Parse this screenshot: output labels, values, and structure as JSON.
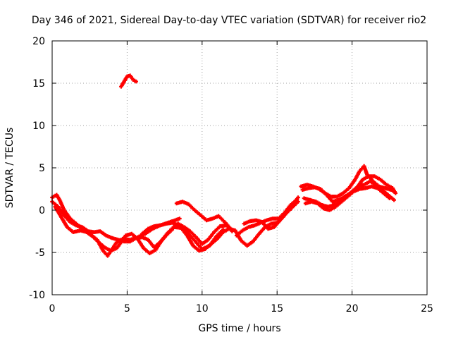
{
  "chart_data": {
    "type": "scatter",
    "title": "Day 346 of 2021, Sidereal Day-to-day VTEC variation (SDTVAR) for receiver rio2",
    "xlabel": "GPS time / hours",
    "ylabel": "SDTVAR / TECUs",
    "xlim": [
      0,
      25
    ],
    "ylim": [
      -10,
      20
    ],
    "xticks": [
      0,
      5,
      10,
      15,
      20,
      25
    ],
    "yticks": [
      -10,
      -5,
      0,
      5,
      10,
      15,
      20
    ],
    "xtick_labels": [
      "0",
      "5",
      "10",
      "15",
      "20",
      "25"
    ],
    "ytick_labels": [
      "-10",
      "-5",
      "0",
      "5",
      "10",
      "15",
      "20"
    ],
    "grid": true,
    "legend": "none",
    "marker": "plus",
    "color": "#ff0000",
    "series": [
      {
        "name": "track-1",
        "points": [
          [
            0.0,
            1.5
          ],
          [
            0.3,
            1.8
          ],
          [
            0.5,
            1.2
          ],
          [
            0.8,
            0.0
          ],
          [
            1.2,
            -1.0
          ],
          [
            1.6,
            -1.6
          ],
          [
            2.0,
            -2.2
          ],
          [
            2.5,
            -2.8
          ],
          [
            3.0,
            -3.5
          ],
          [
            3.4,
            -4.8
          ],
          [
            3.7,
            -5.4
          ],
          [
            4.0,
            -4.6
          ],
          [
            4.3,
            -3.8
          ],
          [
            4.7,
            -3.4
          ],
          [
            5.2,
            -3.5
          ],
          [
            5.7,
            -3.2
          ],
          [
            6.2,
            -2.8
          ],
          [
            6.7,
            -2.2
          ],
          [
            7.2,
            -1.8
          ],
          [
            7.7,
            -1.5
          ],
          [
            8.2,
            -1.2
          ],
          [
            8.5,
            -1.0
          ]
        ]
      },
      {
        "name": "track-2",
        "points": [
          [
            0.0,
            1.0
          ],
          [
            0.4,
            0.4
          ],
          [
            0.8,
            -0.6
          ],
          [
            1.2,
            -1.4
          ],
          [
            1.6,
            -1.8
          ],
          [
            2.0,
            -2.0
          ],
          [
            2.4,
            -2.5
          ],
          [
            2.8,
            -2.6
          ],
          [
            3.2,
            -2.5
          ],
          [
            3.6,
            -3.0
          ],
          [
            4.0,
            -3.3
          ],
          [
            4.4,
            -3.5
          ],
          [
            4.8,
            -3.7
          ],
          [
            5.2,
            -3.7
          ],
          [
            5.6,
            -3.3
          ],
          [
            6.0,
            -3.2
          ],
          [
            6.4,
            -3.5
          ],
          [
            6.8,
            -4.4
          ],
          [
            7.2,
            -3.8
          ],
          [
            7.6,
            -3.0
          ],
          [
            8.0,
            -2.3
          ],
          [
            8.4,
            -1.6
          ],
          [
            8.8,
            -2.0
          ],
          [
            9.2,
            -2.5
          ],
          [
            9.6,
            -3.2
          ],
          [
            10.0,
            -4.0
          ],
          [
            10.4,
            -3.5
          ],
          [
            10.8,
            -2.6
          ],
          [
            11.2,
            -1.9
          ],
          [
            11.6,
            -1.8
          ],
          [
            12.0,
            -2.5
          ]
        ]
      },
      {
        "name": "track-3",
        "points": [
          [
            0.2,
            0.4
          ],
          [
            0.6,
            -0.8
          ],
          [
            1.0,
            -2.0
          ],
          [
            1.4,
            -2.6
          ],
          [
            1.9,
            -2.4
          ],
          [
            2.3,
            -2.6
          ],
          [
            2.7,
            -3.1
          ],
          [
            3.1,
            -3.8
          ],
          [
            3.5,
            -4.4
          ],
          [
            3.9,
            -4.8
          ],
          [
            4.3,
            -4.5
          ],
          [
            4.6,
            -3.8
          ],
          [
            4.9,
            -3.0
          ],
          [
            5.3,
            -2.8
          ],
          [
            5.7,
            -3.4
          ],
          [
            6.1,
            -4.5
          ],
          [
            6.5,
            -5.1
          ],
          [
            6.9,
            -4.7
          ],
          [
            7.3,
            -3.6
          ],
          [
            7.7,
            -2.7
          ],
          [
            8.1,
            -2.0
          ],
          [
            8.6,
            -2.1
          ],
          [
            9.0,
            -3.0
          ],
          [
            9.4,
            -4.2
          ],
          [
            9.8,
            -4.8
          ],
          [
            10.2,
            -4.6
          ],
          [
            10.6,
            -4.0
          ],
          [
            11.0,
            -3.4
          ],
          [
            11.4,
            -2.6
          ],
          [
            11.8,
            -2.2
          ],
          [
            12.2,
            -2.4
          ]
        ]
      },
      {
        "name": "track-4",
        "points": [
          [
            6.0,
            -2.8
          ],
          [
            6.4,
            -2.2
          ],
          [
            6.8,
            -1.9
          ],
          [
            7.2,
            -1.8
          ],
          [
            7.6,
            -1.6
          ],
          [
            8.0,
            -1.5
          ],
          [
            8.5,
            -1.8
          ],
          [
            9.0,
            -2.6
          ],
          [
            9.5,
            -3.6
          ],
          [
            10.0,
            -4.6
          ],
          [
            10.5,
            -4.2
          ],
          [
            11.0,
            -3.0
          ],
          [
            11.4,
            -2.3
          ]
        ]
      },
      {
        "name": "track-5",
        "points": [
          [
            8.3,
            0.8
          ],
          [
            8.7,
            1.0
          ],
          [
            9.1,
            0.7
          ],
          [
            9.5,
            0.0
          ],
          [
            9.9,
            -0.6
          ],
          [
            10.3,
            -1.2
          ],
          [
            10.7,
            -1.0
          ],
          [
            11.1,
            -0.7
          ],
          [
            11.5,
            -1.4
          ],
          [
            11.9,
            -2.2
          ]
        ]
      },
      {
        "name": "track-6",
        "points": [
          [
            12.2,
            -2.4
          ],
          [
            12.6,
            -3.6
          ],
          [
            13.0,
            -4.2
          ],
          [
            13.4,
            -3.7
          ],
          [
            13.8,
            -2.8
          ],
          [
            14.2,
            -2.0
          ],
          [
            14.6,
            -1.6
          ],
          [
            15.0,
            -1.5
          ],
          [
            15.4,
            -0.8
          ],
          [
            15.8,
            0.2
          ],
          [
            16.2,
            1.0
          ],
          [
            16.4,
            1.5
          ]
        ]
      },
      {
        "name": "track-7",
        "points": [
          [
            12.3,
            -3.0
          ],
          [
            12.7,
            -2.4
          ],
          [
            13.1,
            -2.0
          ],
          [
            13.5,
            -1.8
          ],
          [
            13.9,
            -1.5
          ],
          [
            14.3,
            -1.2
          ],
          [
            14.7,
            -1.0
          ],
          [
            15.1,
            -1.0
          ],
          [
            15.5,
            -0.3
          ],
          [
            15.9,
            0.6
          ],
          [
            16.3,
            1.2
          ]
        ]
      },
      {
        "name": "track-8",
        "points": [
          [
            12.8,
            -1.6
          ],
          [
            13.2,
            -1.3
          ],
          [
            13.6,
            -1.2
          ],
          [
            14.0,
            -1.4
          ],
          [
            14.4,
            -2.2
          ],
          [
            14.8,
            -2.0
          ],
          [
            15.2,
            -1.2
          ],
          [
            15.6,
            -0.4
          ],
          [
            16.0,
            0.3
          ],
          [
            16.4,
            1.0
          ]
        ]
      },
      {
        "name": "track-9",
        "points": [
          [
            16.6,
            2.8
          ],
          [
            17.0,
            3.0
          ],
          [
            17.4,
            2.8
          ],
          [
            17.8,
            2.5
          ],
          [
            18.2,
            2.0
          ],
          [
            18.6,
            1.6
          ],
          [
            19.0,
            1.6
          ],
          [
            19.4,
            2.0
          ],
          [
            19.8,
            2.6
          ],
          [
            20.2,
            3.6
          ],
          [
            20.5,
            4.6
          ],
          [
            20.8,
            5.2
          ],
          [
            21.0,
            4.2
          ],
          [
            21.4,
            3.4
          ],
          [
            21.8,
            2.8
          ],
          [
            22.2,
            2.6
          ],
          [
            22.6,
            2.4
          ],
          [
            22.8,
            2.2
          ]
        ]
      },
      {
        "name": "track-10",
        "points": [
          [
            16.7,
            2.4
          ],
          [
            17.1,
            2.6
          ],
          [
            17.5,
            2.7
          ],
          [
            17.9,
            2.5
          ],
          [
            18.3,
            1.8
          ],
          [
            18.7,
            1.0
          ],
          [
            19.1,
            1.2
          ],
          [
            19.5,
            1.6
          ],
          [
            19.9,
            2.0
          ],
          [
            20.3,
            2.6
          ],
          [
            20.7,
            3.6
          ],
          [
            21.1,
            4.0
          ],
          [
            21.5,
            4.0
          ],
          [
            21.9,
            3.6
          ],
          [
            22.3,
            3.0
          ],
          [
            22.7,
            2.6
          ],
          [
            22.9,
            2.0
          ]
        ]
      },
      {
        "name": "track-11",
        "points": [
          [
            16.8,
            1.4
          ],
          [
            17.2,
            1.2
          ],
          [
            17.6,
            1.0
          ],
          [
            18.0,
            0.6
          ],
          [
            18.4,
            0.4
          ],
          [
            18.8,
            0.6
          ],
          [
            19.2,
            1.0
          ],
          [
            19.6,
            1.6
          ],
          [
            20.0,
            2.2
          ],
          [
            20.4,
            2.8
          ],
          [
            20.8,
            3.0
          ],
          [
            21.2,
            3.4
          ],
          [
            21.6,
            3.0
          ],
          [
            22.0,
            2.4
          ],
          [
            22.4,
            1.8
          ],
          [
            22.8,
            1.2
          ]
        ]
      },
      {
        "name": "track-12",
        "points": [
          [
            16.9,
            0.8
          ],
          [
            17.3,
            1.0
          ],
          [
            17.7,
            0.8
          ],
          [
            18.1,
            0.2
          ],
          [
            18.5,
            0.0
          ],
          [
            18.9,
            0.4
          ],
          [
            19.3,
            1.0
          ],
          [
            19.7,
            1.6
          ],
          [
            20.1,
            2.2
          ],
          [
            20.5,
            2.5
          ],
          [
            20.9,
            2.6
          ],
          [
            21.3,
            2.8
          ],
          [
            21.7,
            2.6
          ],
          [
            22.1,
            2.0
          ],
          [
            22.5,
            1.4
          ]
        ]
      },
      {
        "name": "track-13",
        "points": [
          [
            4.6,
            14.6
          ],
          [
            4.8,
            15.2
          ],
          [
            5.0,
            15.8
          ],
          [
            5.2,
            15.9
          ],
          [
            5.4,
            15.4
          ],
          [
            5.6,
            15.2
          ]
        ]
      }
    ]
  }
}
